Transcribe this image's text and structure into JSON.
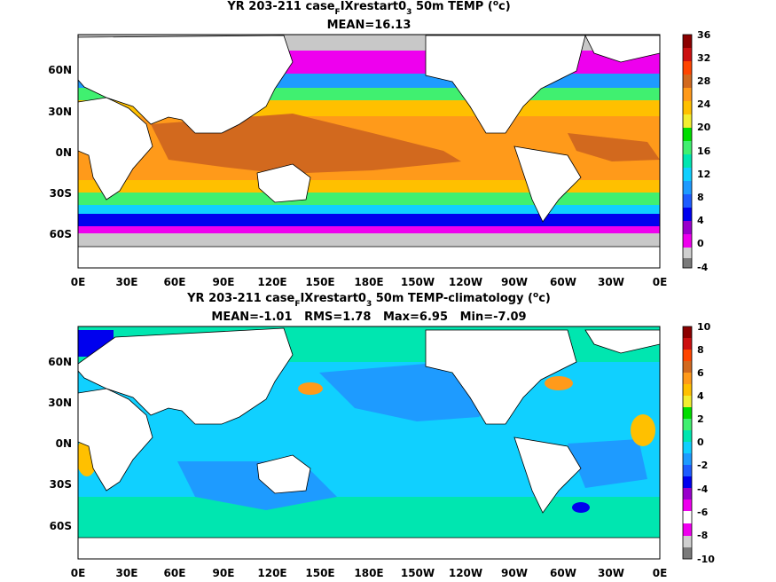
{
  "chart_data": [
    {
      "type": "heatmap",
      "title": "YR 203-211 case_FIXrestart0_3 50m TEMP (°c)",
      "title_parts": {
        "prefix": "YR 203-211 case",
        "sub1": "F",
        "middle": "IXrestart0",
        "sub2": "3",
        "suffix": " 50m TEMP (",
        "sup": "o",
        "end": "c)"
      },
      "subtitle": "MEAN=16.13",
      "x_ticks": [
        "0E",
        "30E",
        "60E",
        "90E",
        "120E",
        "150E",
        "180E",
        "150W",
        "120W",
        "90W",
        "60W",
        "30W",
        "0E"
      ],
      "y_ticks": [
        "60N",
        "30N",
        "0N",
        "30S",
        "60S"
      ],
      "colorbar": {
        "labels": [
          "36",
          "32",
          "28",
          "24",
          "20",
          "16",
          "12",
          "8",
          "4",
          "0",
          "-4"
        ],
        "range": [
          -4,
          36
        ]
      },
      "field": "ocean temperature at 50m"
    },
    {
      "type": "heatmap",
      "title": "YR 203-211 case_FIXrestart0_3 50m TEMP-climatology (°c)",
      "title_parts": {
        "prefix": "YR 203-211 case",
        "sub1": "F",
        "middle": "IXrestart0",
        "sub2": "3",
        "suffix": " 50m TEMP-climatology (",
        "sup": "o",
        "end": "c)"
      },
      "subtitle": "MEAN=-1.01   RMS=1.78   Max=6.95   Min=-7.09",
      "x_ticks": [
        "0E",
        "30E",
        "60E",
        "90E",
        "120E",
        "150E",
        "180E",
        "150W",
        "120W",
        "90W",
        "60W",
        "30W",
        "0E"
      ],
      "y_ticks": [
        "60N",
        "30N",
        "0N",
        "30S",
        "60S"
      ],
      "colorbar": {
        "labels": [
          "10",
          "8",
          "6",
          "4",
          "2",
          "0",
          "-2",
          "-4",
          "-6",
          "-8",
          "-10"
        ],
        "range": [
          -10,
          10
        ]
      },
      "field": "temperature anomaly vs climatology"
    }
  ],
  "colors": {
    "land": "#ffffff",
    "ice": "#c8c8c8",
    "palette": [
      "#7a7a7a",
      "#cfcfcf",
      "#ee00ee",
      "#9900cc",
      "#0000ee",
      "#1e5cff",
      "#1e9bff",
      "#10d0ff",
      "#00e6b0",
      "#40f070",
      "#00dd00",
      "#f2ee30",
      "#ffc000",
      "#ff9a1a",
      "#d2691e",
      "#ff4500",
      "#cc1010",
      "#8b0000"
    ]
  }
}
